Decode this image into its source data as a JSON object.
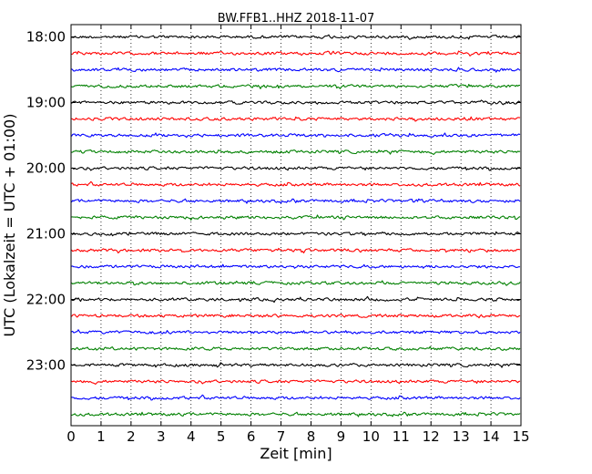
{
  "chart_data": {
    "type": "line",
    "title": "BW.FFB1..HHZ 2018-11-07",
    "xlabel": "Zeit  [min]",
    "ylabel": "UTC (Lokalzeit = UTC + 01:00)",
    "xlim": [
      0,
      15
    ],
    "x_ticks": [
      "0",
      "1",
      "2",
      "3",
      "4",
      "5",
      "6",
      "7",
      "8",
      "9",
      "10",
      "11",
      "12",
      "13",
      "14",
      "15"
    ],
    "y_ticks": [
      "18:00",
      "19:00",
      "20:00",
      "21:00",
      "22:00",
      "23:00"
    ],
    "trace_interval_min": 15,
    "trace_colors": [
      "#000000",
      "#ff0000",
      "#0000ff",
      "#008000"
    ],
    "traces": [
      {
        "start": "18:00",
        "color": "#000000"
      },
      {
        "start": "18:15",
        "color": "#ff0000"
      },
      {
        "start": "18:30",
        "color": "#0000ff"
      },
      {
        "start": "18:45",
        "color": "#008000"
      },
      {
        "start": "19:00",
        "color": "#000000"
      },
      {
        "start": "19:15",
        "color": "#ff0000"
      },
      {
        "start": "19:30",
        "color": "#0000ff"
      },
      {
        "start": "19:45",
        "color": "#008000"
      },
      {
        "start": "20:00",
        "color": "#000000"
      },
      {
        "start": "20:15",
        "color": "#ff0000"
      },
      {
        "start": "20:30",
        "color": "#0000ff"
      },
      {
        "start": "20:45",
        "color": "#008000"
      },
      {
        "start": "21:00",
        "color": "#000000"
      },
      {
        "start": "21:15",
        "color": "#ff0000"
      },
      {
        "start": "21:30",
        "color": "#0000ff"
      },
      {
        "start": "21:45",
        "color": "#008000"
      },
      {
        "start": "22:00",
        "color": "#000000"
      },
      {
        "start": "22:15",
        "color": "#ff0000"
      },
      {
        "start": "22:30",
        "color": "#0000ff"
      },
      {
        "start": "22:45",
        "color": "#008000"
      },
      {
        "start": "23:00",
        "color": "#000000"
      },
      {
        "start": "23:15",
        "color": "#ff0000"
      },
      {
        "start": "23:30",
        "color": "#0000ff"
      },
      {
        "start": "23:45",
        "color": "#008000"
      }
    ],
    "grid": "vertical dotted at each minute"
  }
}
